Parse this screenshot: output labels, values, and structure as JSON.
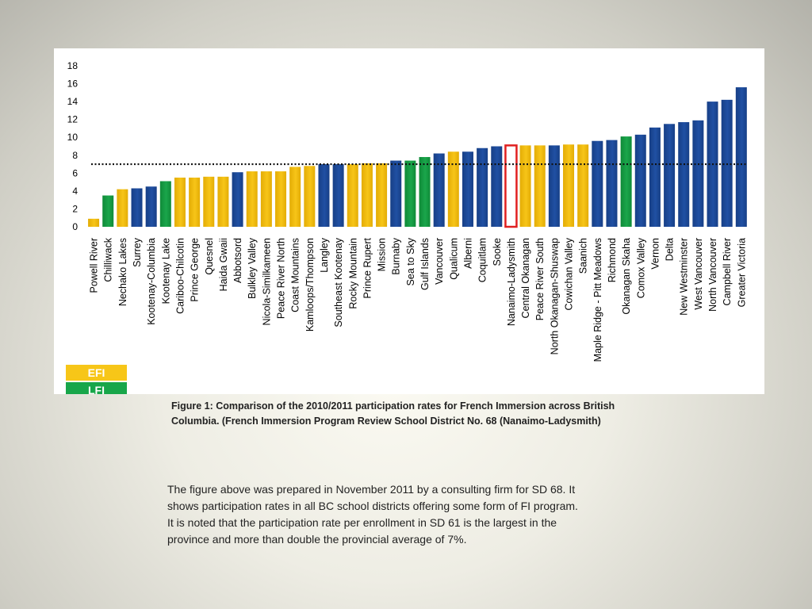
{
  "chart_data": {
    "type": "bar",
    "title": "",
    "xlabel": "",
    "ylabel": "",
    "ylim": [
      0,
      18
    ],
    "yticks": [
      0,
      2,
      4,
      6,
      8,
      10,
      12,
      14,
      16,
      18
    ],
    "reference_line": {
      "value": 7,
      "style": "dotted"
    },
    "highlighted_category": "Nanaimo-Ladysmith",
    "colors": {
      "EFI": "#f7c518",
      "LFI": "#1aa64b",
      "both": "#2050a3",
      "highlight_border": "#e02020"
    },
    "categories": [
      "Powell River",
      "Chilliwack",
      "Nechako Lakes",
      "Surrey",
      "Kootenay-Columbia",
      "Kootenay Lake",
      "Cariboo-Chilcotin",
      "Prince George",
      "Quesnel",
      "Haida Gwaii",
      "Abbotsord",
      "Bulkley Valley",
      "Nicola-Similkameen",
      "Peace River North",
      "Coast Mountains",
      "Kamloops/Thompson",
      "Langley",
      "Southeast Kootenay",
      "Rocky Mountain",
      "Prince Rupert",
      "Mission",
      "Burnaby",
      "Sea to Sky",
      "Gulf Islands",
      "Vancouver",
      "Qualicum",
      "Alberni",
      "Coquitlam",
      "Sooke",
      "Nanaimo-Ladysmith",
      "Central Okanagan",
      "Peace River South",
      "North Okanagan-Shuswap",
      "Cowichan Valley",
      "Saanich",
      "Maple Ridge - Pitt Meadows",
      "Richmond",
      "Okanagan Skaha",
      "Comox Valley",
      "Vernon",
      "Delta",
      "New Westminster",
      "West Vancouver",
      "North Vancouver",
      "Campbell River",
      "Greater Victoria"
    ],
    "values": [
      0.9,
      3.5,
      4.2,
      4.3,
      4.5,
      5.1,
      5.5,
      5.5,
      5.6,
      5.6,
      6.1,
      6.2,
      6.2,
      6.2,
      6.7,
      6.8,
      7.0,
      7.0,
      7.0,
      7.1,
      7.1,
      7.4,
      7.4,
      7.8,
      8.2,
      8.4,
      8.4,
      8.8,
      9.0,
      9.1,
      9.1,
      9.1,
      9.1,
      9.2,
      9.2,
      9.6,
      9.7,
      10.1,
      10.3,
      11.1,
      11.5,
      11.7,
      11.9,
      14.0,
      14.2,
      15.6
    ],
    "bar_types": [
      "EFI",
      "LFI",
      "EFI",
      "both",
      "both",
      "LFI",
      "EFI",
      "EFI",
      "EFI",
      "EFI",
      "both",
      "EFI",
      "EFI",
      "EFI",
      "EFI",
      "EFI",
      "both",
      "both",
      "EFI",
      "EFI",
      "EFI",
      "both",
      "LFI",
      "LFI",
      "both",
      "EFI",
      "both",
      "both",
      "both",
      "highlight",
      "EFI",
      "EFI",
      "both",
      "EFI",
      "EFI",
      "both",
      "both",
      "LFI",
      "both",
      "both",
      "both",
      "both",
      "both",
      "both",
      "both",
      "both"
    ],
    "legend": [
      "EFI",
      "LFI"
    ]
  },
  "caption": "Figure 1: Comparison of the 2010/2011 participation rates for French Immersion across British Columbia. (French Immersion Program Review School District No. 68 (Nanaimo-Ladysmith)",
  "body_lines": [
    "The figure above was prepared in November 2011 by a consulting firm for SD 68.  It",
    "shows participation rates in all BC school districts offering some form of FI program.",
    "It is noted that the participation rate per enrollment in SD 61 is the largest in the",
    "province and more than double the provincial average of 7%."
  ]
}
